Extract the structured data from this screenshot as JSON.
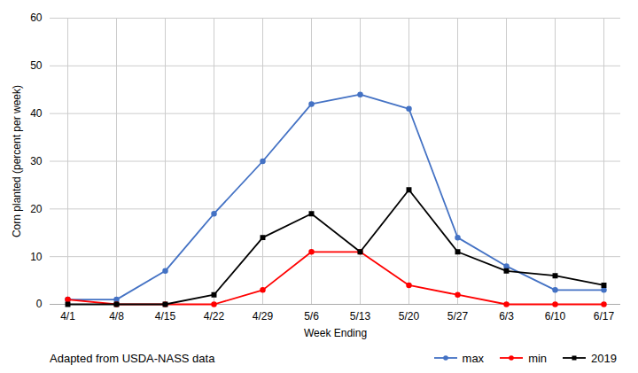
{
  "chart_data": {
    "type": "line",
    "xlabel": "Week Ending",
    "ylabel": "Corn planted (percent per week)",
    "categories": [
      "4/1",
      "4/8",
      "4/15",
      "4/22",
      "4/29",
      "5/6",
      "5/13",
      "5/20",
      "5/27",
      "6/3",
      "6/10",
      "6/17"
    ],
    "series": [
      {
        "name": "max",
        "color": "#4472C4",
        "marker": "circle",
        "values": [
          1,
          1,
          7,
          19,
          30,
          42,
          44,
          41,
          14,
          8,
          3,
          3
        ]
      },
      {
        "name": "min",
        "color": "#FF0000",
        "marker": "circle",
        "values": [
          1,
          0,
          0,
          0,
          3,
          11,
          11,
          4,
          2,
          0,
          0,
          0
        ]
      },
      {
        "name": "2019",
        "color": "#000000",
        "marker": "square",
        "values": [
          0,
          0,
          0,
          2,
          14,
          19,
          11,
          24,
          11,
          7,
          6,
          4
        ]
      }
    ],
    "ylim": [
      0,
      60
    ],
    "yticks": [
      0,
      10,
      20,
      30,
      40,
      50,
      60
    ],
    "grid": true,
    "legend": "bottom",
    "annotations": [
      "Adapted from USDA-NASS data"
    ]
  }
}
